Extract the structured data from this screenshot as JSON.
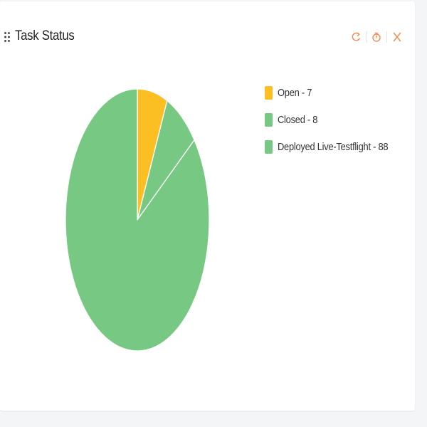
{
  "widget": {
    "title": "Task Status",
    "tools": [
      {
        "icon": "refresh-icon"
      },
      {
        "icon": "timer-icon"
      },
      {
        "icon": "close-icon"
      }
    ],
    "accent_color": "#f5894e"
  },
  "legend": {
    "items": [
      {
        "label": "Open - 7",
        "color": "#fbbf24"
      },
      {
        "label": "Closed - 8",
        "color": "#77c882"
      },
      {
        "label": "Deployed Live-Testflight - 88",
        "color": "#77c882"
      }
    ]
  },
  "chart_data": {
    "type": "pie",
    "categories": [
      "Open",
      "Closed",
      "Deployed Live-Testflight"
    ],
    "values": [
      7,
      8,
      88
    ],
    "colors": [
      "#fbbf24",
      "#77c882",
      "#77c882"
    ],
    "title": "Task Status",
    "legend_position": "right"
  }
}
